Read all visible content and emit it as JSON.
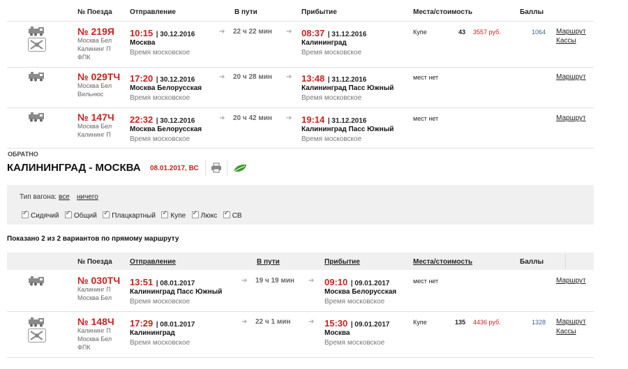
{
  "headers": {
    "train": "№ Поезда",
    "departure": "Отправление",
    "en_route": "В пути",
    "arrival": "Прибытие",
    "seats": "Места/стоимость",
    "points": "Баллы"
  },
  "outbound": [
    {
      "number": "№ 219Я",
      "stations": [
        "Москва Бел",
        "Калининг П",
        "ФПК"
      ],
      "dep_time": "10:15",
      "dep_date": "| 30.12.2016",
      "dep_station": "Москва",
      "dep_tz": "Время московское",
      "duration": "22 ч 22 мин",
      "arr_time": "08:37",
      "arr_date": "| 31.12.2016",
      "arr_station": "Калининград",
      "arr_tz": "Время московское",
      "seat_type": "Купе",
      "seat_count": "43",
      "price": "3557 руб.",
      "points": "1064",
      "links": [
        "Маршрут",
        "Кассы"
      ]
    },
    {
      "number": "№ 029ТЧ",
      "stations": [
        "Москва Бел",
        "Вильнюс"
      ],
      "dep_time": "17:20",
      "dep_date": "| 30.12.2016",
      "dep_station": "Москва Белорусская",
      "dep_tz": "Время московское",
      "duration": "20 ч 28 мин",
      "arr_time": "13:48",
      "arr_date": "| 31.12.2016",
      "arr_station": "Калининград Пасс Южный",
      "arr_tz": "Время московское",
      "no_seats": "мест нет",
      "links": [
        "Маршрут"
      ]
    },
    {
      "number": "№ 147Ч",
      "stations": [
        "Москва Бел",
        "Калининг П"
      ],
      "dep_time": "22:32",
      "dep_date": "| 30.12.2016",
      "dep_station": "Москва Белорусская",
      "dep_tz": "Время московское",
      "duration": "20 ч 42 мин",
      "arr_time": "19:14",
      "arr_date": "| 31.12.2016",
      "arr_station": "Калининград Пасс Южный",
      "arr_tz": "Время московское",
      "no_seats": "мест нет",
      "links": [
        "Маршрут"
      ]
    }
  ],
  "return_section": {
    "label": "ОБРАТНО",
    "route": "КАЛИНИНГРАД - МОСКВА",
    "date": "08.01.2017, ВС"
  },
  "filter": {
    "type_label": "Тип вагона:",
    "all": "все",
    "none": "ничего",
    "options": [
      "Сидячий",
      "Общий",
      "Плацкартный",
      "Купе",
      "Люкс",
      "СВ"
    ]
  },
  "summary": "Показано 2 из 2 вариантов по прямому маршруту",
  "return_trains": [
    {
      "number": "№ 030ТЧ",
      "stations": [
        "Калининг П",
        "Москва Бел"
      ],
      "dep_time": "13:51",
      "dep_date": "| 08.01.2017",
      "dep_station": "Калининград Пасс Южный",
      "dep_tz": "Время московское",
      "duration": "19 ч 19 мин",
      "arr_time": "09:10",
      "arr_date": "| 09.01.2017",
      "arr_station": "Москва Белорусская",
      "arr_tz": "Время московское",
      "no_seats": "мест нет",
      "links": [
        "Маршрут"
      ]
    },
    {
      "number": "№ 148Ч",
      "stations": [
        "Калининг П",
        "Москва Бел",
        "ФПК"
      ],
      "dep_time": "17:29",
      "dep_date": "| 08.01.2017",
      "dep_station": "Калининград",
      "dep_tz": "Время московское",
      "duration": "22 ч 1 мин",
      "arr_time": "15:30",
      "arr_date": "| 09.01.2017",
      "arr_station": "Москва",
      "arr_tz": "Время московское",
      "seat_type": "Купе",
      "seat_count": "135",
      "price": "4436 руб.",
      "points": "1328",
      "links": [
        "Маршрут",
        "Кассы"
      ]
    }
  ],
  "colors": {
    "accent_red": "#c9211e",
    "points_blue": "#3b5f8f",
    "leaf_green": "#3a9a2a"
  }
}
